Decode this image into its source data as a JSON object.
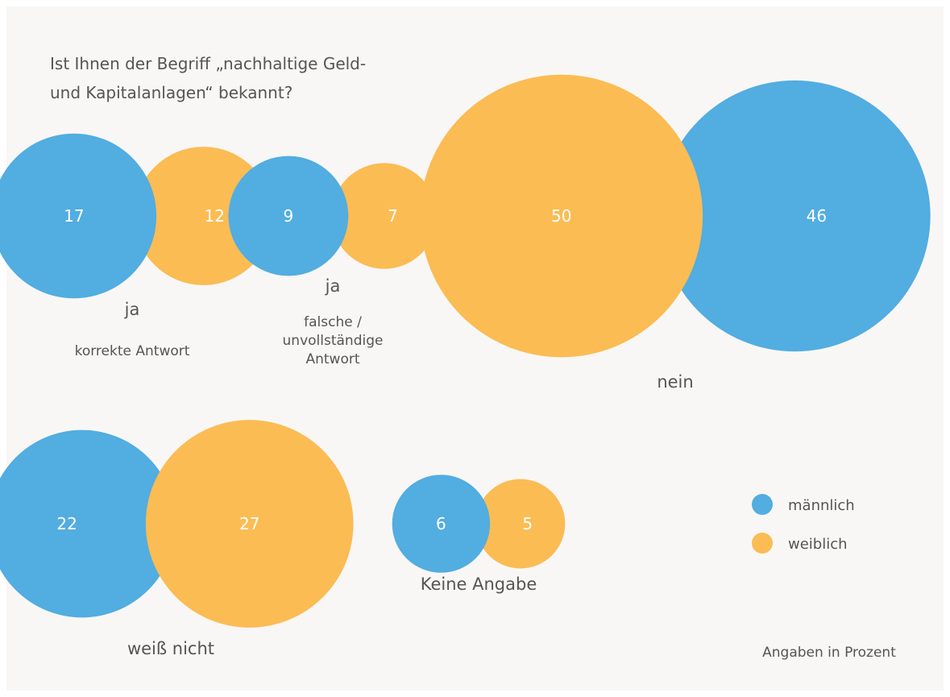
{
  "title": [
    "Ist Ihnen der Begriff „nachhaltige Geld-",
    "und Kapitalanlagen“ bekannt?"
  ],
  "colors": {
    "maennlich": "#52ade0",
    "weiblich": "#fbbc54",
    "background": "#f8f7f5",
    "text": "#555555"
  },
  "legend": [
    {
      "label": "männlich",
      "color": "#52ade0"
    },
    {
      "label": "weiblich",
      "color": "#fbbc54"
    }
  ],
  "note": "Angaben in Prozent",
  "chart_data": {
    "type": "bubble-pairs",
    "unit": "Prozent",
    "series": [
      "männlich",
      "weiblich"
    ],
    "groups": [
      {
        "label": "ja",
        "sublabel": [
          "korrekte Antwort"
        ],
        "values": {
          "männlich": 17,
          "weiblich": 12
        }
      },
      {
        "label": "ja",
        "sublabel": [
          "falsche /",
          "unvollständige",
          "Antwort"
        ],
        "values": {
          "männlich": 9,
          "weiblich": 7
        }
      },
      {
        "label": "nein",
        "sublabel": [],
        "values": {
          "männlich": 46,
          "weiblich": 50
        }
      },
      {
        "label": "weiß nicht",
        "sublabel": [],
        "values": {
          "männlich": 22,
          "weiblich": 27
        }
      },
      {
        "label": "Keine Angabe",
        "sublabel": [],
        "values": {
          "männlich": 6,
          "weiblich": 5
        }
      }
    ]
  }
}
